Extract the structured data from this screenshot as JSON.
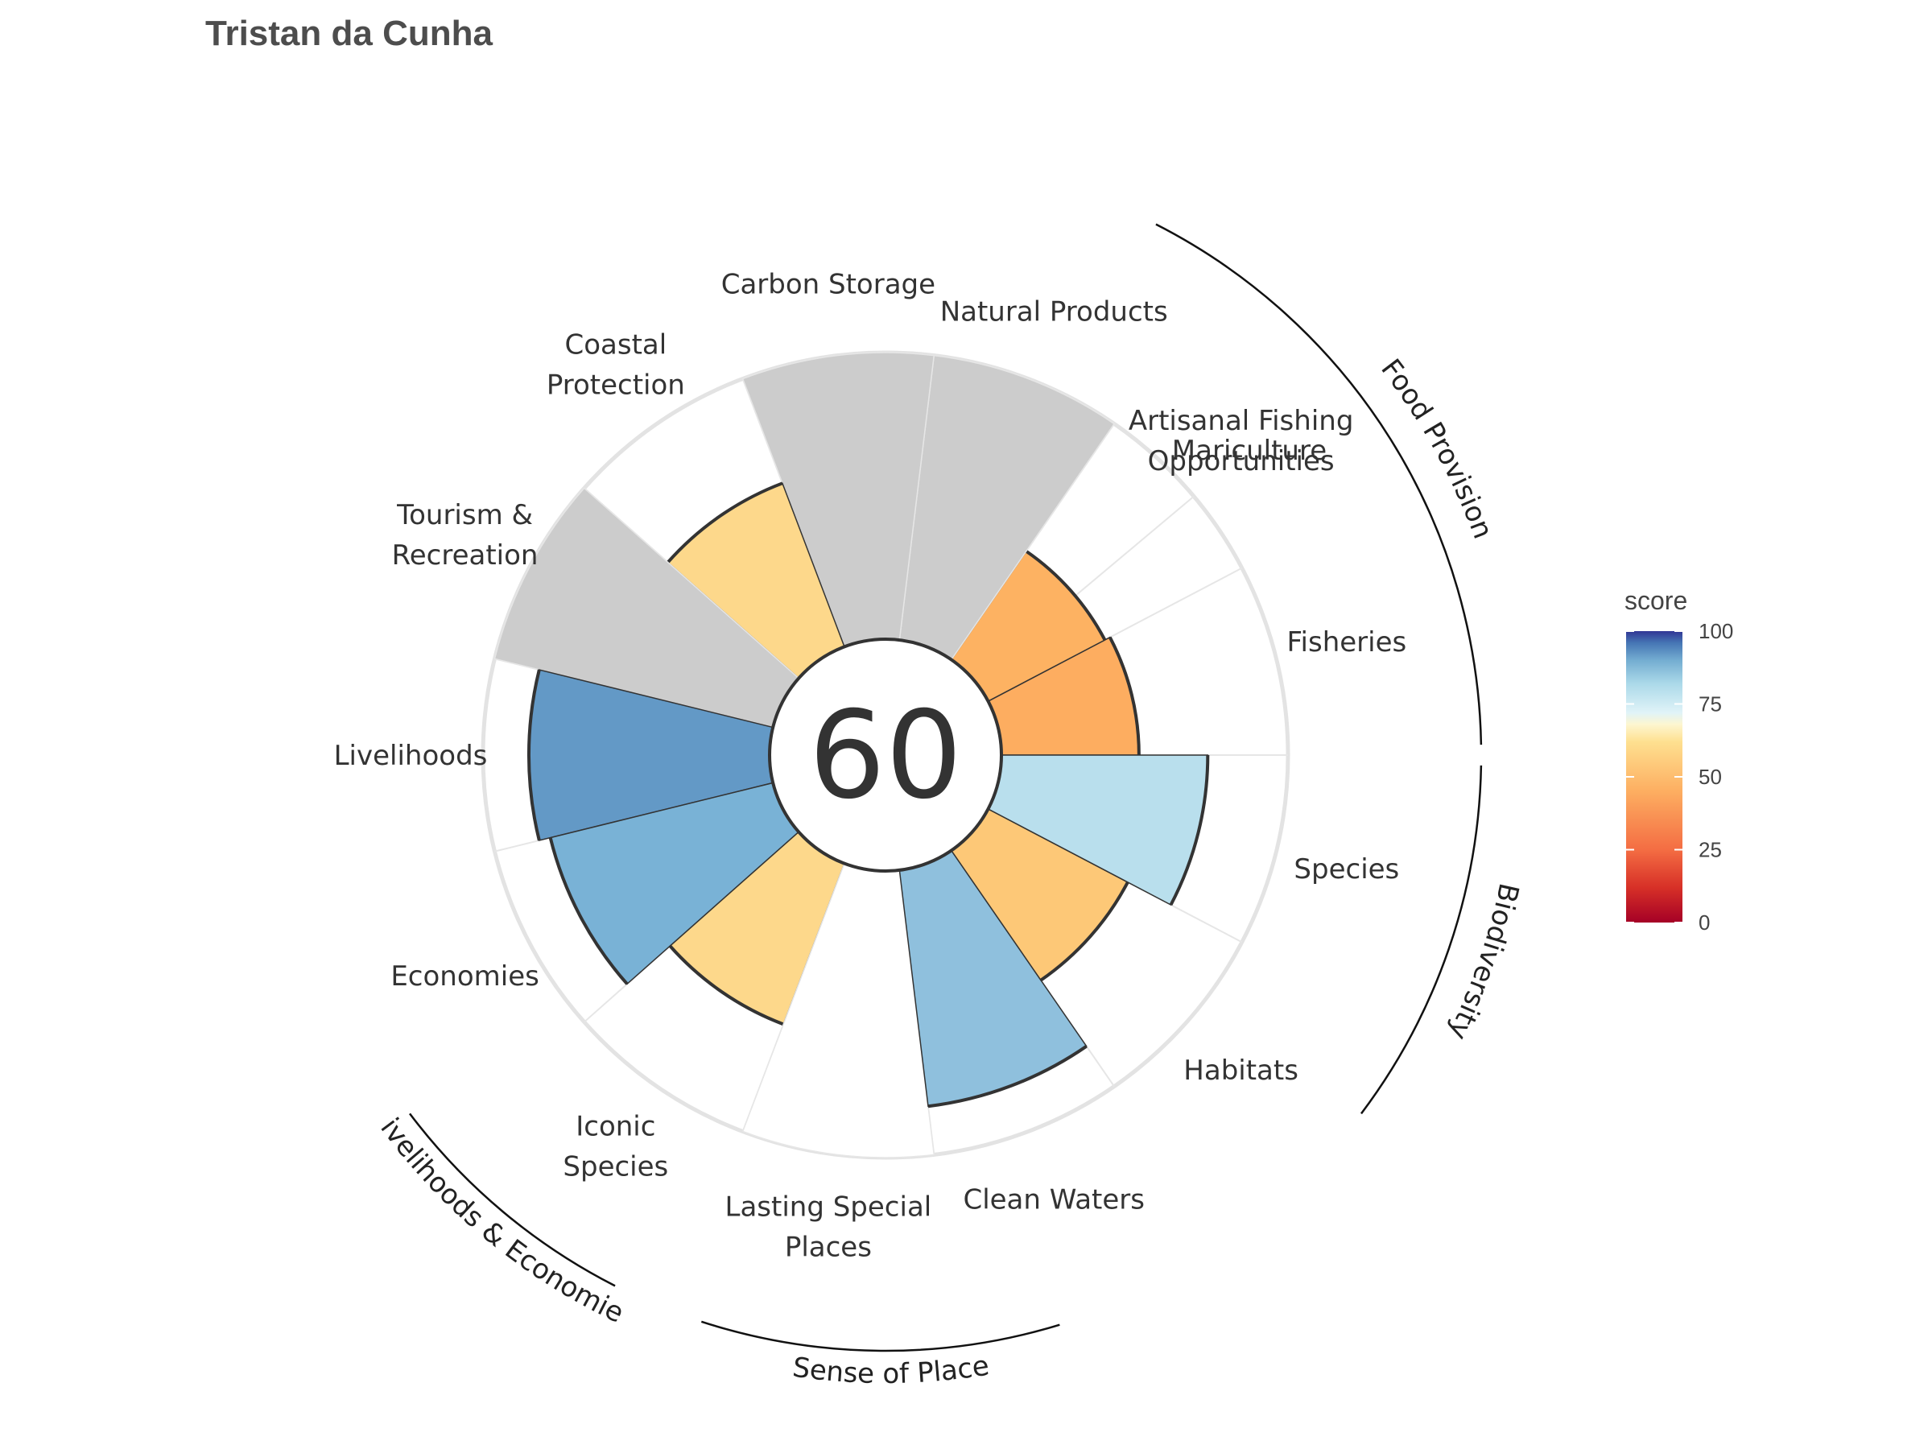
{
  "chart_data": {
    "type": "bar",
    "coord": "polar",
    "title": "Tristan da Cunha",
    "overall_score": "60",
    "ylim": [
      0,
      100
    ],
    "categories": [
      "Fisheries",
      "Artisanal Fishing Opportunities",
      "Natural Products",
      "Carbon Storage",
      "Coastal Protection",
      "Tourism & Recreation",
      "Livelihoods",
      "Economies",
      "Iconic Species",
      "Lasting Special Places",
      "Clean Waters",
      "Habitats",
      "Species"
    ],
    "label_lines": [
      [
        "Fisheries"
      ],
      [
        "Artisanal Fishing",
        "Opportunities"
      ],
      [
        "Natural Products"
      ],
      [
        "Carbon Storage"
      ],
      [
        "Coastal",
        "Protection"
      ],
      [
        "Tourism &",
        "Recreation"
      ],
      [
        "Livelihoods"
      ],
      [
        "Economies"
      ],
      [
        "Iconic",
        "Species"
      ],
      [
        "Lasting Special",
        "Places"
      ],
      [
        "Clean Waters"
      ],
      [
        "Habitats"
      ],
      [
        "Species"
      ]
    ],
    "extra_labels": [
      "Mariculture"
    ],
    "values": [
      48,
      46,
      null,
      null,
      61,
      null,
      84,
      80,
      60,
      null,
      83,
      55,
      72
    ],
    "fill_colors": [
      "#fdad60",
      "#fdb262",
      "#cccccc",
      "#cccccc",
      "#fdd88b",
      "#cccccc",
      "#6399c6",
      "#79b2d6",
      "#fdd88b",
      "#ffffff",
      "#8fc0dd",
      "#fdc877",
      "#b9dfed"
    ],
    "na_color": "#cccccc",
    "groups": [
      {
        "name": "Food Provision"
      },
      {
        "name": "Biodiversity"
      },
      {
        "name": "Sense of Place"
      },
      {
        "name": "Livelihoods & Economies"
      }
    ],
    "legend": {
      "title": "score",
      "ticks": [
        "100",
        "75",
        "50",
        "25",
        "0"
      ],
      "colors": [
        "#a50026",
        "#d73027",
        "#f46d43",
        "#fdae61",
        "#fee090",
        "#e0f3f8",
        "#abd9e9",
        "#74add1",
        "#4575b4",
        "#313695"
      ],
      "placement": "right"
    }
  }
}
